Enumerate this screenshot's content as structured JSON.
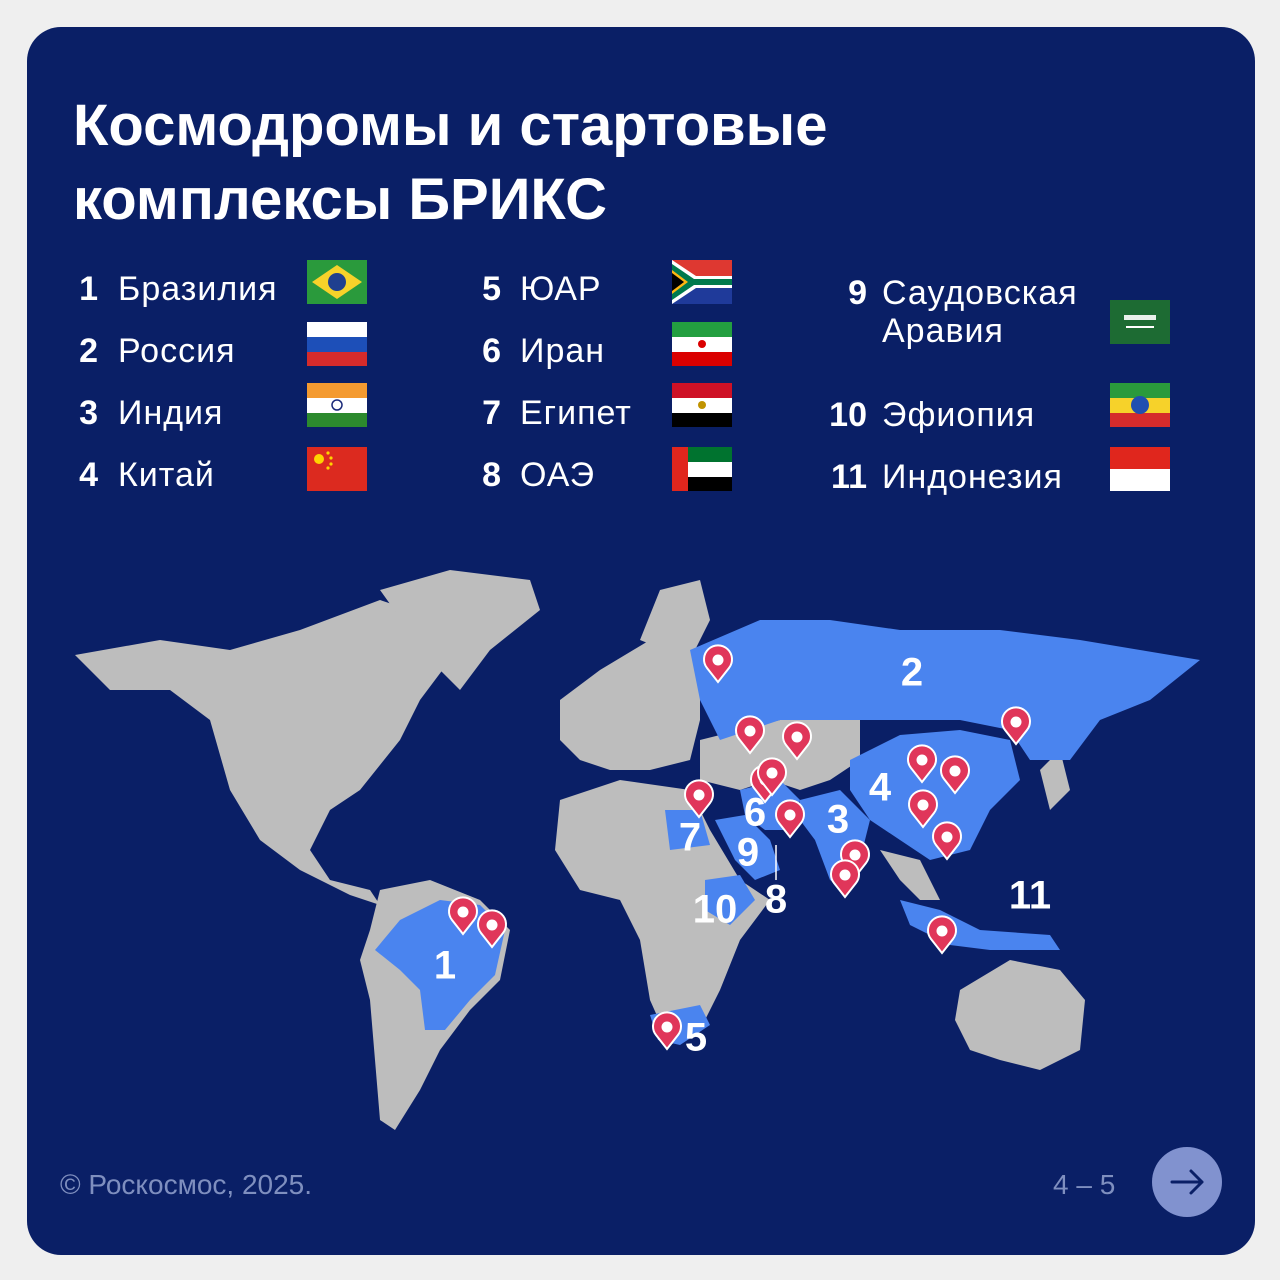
{
  "header": {
    "title": "Космодромы и стартовые комплексы БРИКС"
  },
  "legend": [
    {
      "number": "1",
      "name": "Бразилия"
    },
    {
      "number": "2",
      "name": "Россия"
    },
    {
      "number": "3",
      "name": "Индия"
    },
    {
      "number": "4",
      "name": "Китай"
    },
    {
      "number": "5",
      "name": "ЮАР"
    },
    {
      "number": "6",
      "name": "Иран"
    },
    {
      "number": "7",
      "name": "Египет"
    },
    {
      "number": "8",
      "name": "ОАЭ"
    },
    {
      "number": "9",
      "name": "Саудовская Аравия"
    },
    {
      "number": "10",
      "name": "Эфиопия"
    },
    {
      "number": "11",
      "name": "Индонезия"
    }
  ],
  "map": {
    "labels": [
      "1",
      "2",
      "3",
      "4",
      "5",
      "6",
      "7",
      "8",
      "9",
      "10",
      "11"
    ]
  },
  "footer": {
    "copyright": "© Роскосмос, 2025.",
    "page": "4 – 5"
  }
}
